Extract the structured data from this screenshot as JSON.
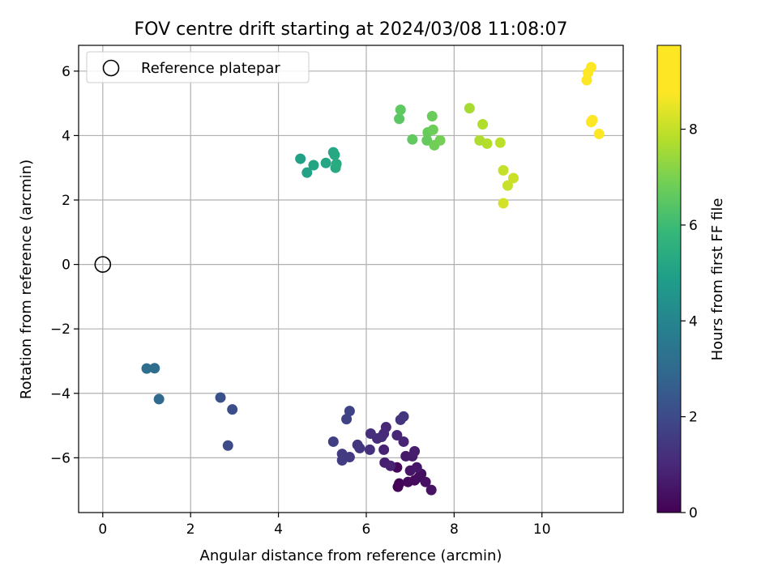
{
  "chart_data": {
    "type": "scatter",
    "title": "FOV centre drift starting at 2024/03/08 11:08:07",
    "xlabel": "Angular distance from reference (arcmin)",
    "ylabel": "Rotation from reference (arcmin)",
    "xlim": [
      -0.55,
      11.85
    ],
    "ylim": [
      -7.7,
      6.8
    ],
    "x_ticks": [
      0,
      2,
      4,
      6,
      8,
      10
    ],
    "y_ticks": [
      -6,
      -4,
      -2,
      0,
      2,
      4,
      6
    ],
    "x_tick_labels": [
      "0",
      "2",
      "4",
      "6",
      "8",
      "10"
    ],
    "y_tick_labels": [
      "−6",
      "−4",
      "−2",
      "0",
      "2",
      "4",
      "6"
    ],
    "grid": true,
    "legend": {
      "position": "top-left",
      "entries": [
        {
          "label": "Reference platepar",
          "marker": "open-circle"
        }
      ]
    },
    "reference_point": {
      "x": 0,
      "y": 0
    },
    "colorbar": {
      "label": "Hours from first FF file",
      "colormap": "viridis",
      "range": [
        0,
        9.75
      ],
      "ticks": [
        0,
        2,
        4,
        6,
        8
      ],
      "tick_labels": [
        "0",
        "2",
        "4",
        "6",
        "8"
      ]
    },
    "points": [
      {
        "x": 6.72,
        "y": -6.9,
        "c": 0.05
      },
      {
        "x": 6.75,
        "y": -6.8,
        "c": 0.1
      },
      {
        "x": 6.7,
        "y": -6.3,
        "c": 0.15
      },
      {
        "x": 6.95,
        "y": -6.75,
        "c": 0.2
      },
      {
        "x": 7.1,
        "y": -6.7,
        "c": 0.25
      },
      {
        "x": 7.2,
        "y": -6.6,
        "c": 0.3
      },
      {
        "x": 7.25,
        "y": -6.5,
        "c": 0.35
      },
      {
        "x": 7.35,
        "y": -6.75,
        "c": 0.4
      },
      {
        "x": 7.48,
        "y": -7.0,
        "c": 0.45
      },
      {
        "x": 7.0,
        "y": -6.4,
        "c": 0.5
      },
      {
        "x": 7.15,
        "y": -6.3,
        "c": 0.55
      },
      {
        "x": 6.9,
        "y": -5.95,
        "c": 0.6
      },
      {
        "x": 7.05,
        "y": -5.95,
        "c": 0.65
      },
      {
        "x": 7.1,
        "y": -5.8,
        "c": 0.7
      },
      {
        "x": 6.42,
        "y": -6.15,
        "c": 0.75
      },
      {
        "x": 6.55,
        "y": -6.25,
        "c": 0.8
      },
      {
        "x": 6.4,
        "y": -5.75,
        "c": 0.85
      },
      {
        "x": 6.85,
        "y": -5.5,
        "c": 0.9
      },
      {
        "x": 6.7,
        "y": -5.3,
        "c": 0.95
      },
      {
        "x": 6.45,
        "y": -5.05,
        "c": 1.0
      },
      {
        "x": 6.4,
        "y": -5.25,
        "c": 1.05
      },
      {
        "x": 6.35,
        "y": -5.35,
        "c": 1.1
      },
      {
        "x": 6.25,
        "y": -5.4,
        "c": 1.15
      },
      {
        "x": 6.1,
        "y": -5.25,
        "c": 1.2
      },
      {
        "x": 6.08,
        "y": -5.75,
        "c": 1.25
      },
      {
        "x": 6.78,
        "y": -4.82,
        "c": 1.3
      },
      {
        "x": 6.85,
        "y": -4.72,
        "c": 1.35
      },
      {
        "x": 5.85,
        "y": -5.7,
        "c": 1.4
      },
      {
        "x": 5.8,
        "y": -5.6,
        "c": 1.45
      },
      {
        "x": 5.62,
        "y": -5.98,
        "c": 1.5
      },
      {
        "x": 5.45,
        "y": -5.88,
        "c": 1.55
      },
      {
        "x": 5.45,
        "y": -6.08,
        "c": 1.6
      },
      {
        "x": 5.25,
        "y": -5.5,
        "c": 1.65
      },
      {
        "x": 5.55,
        "y": -4.8,
        "c": 1.7
      },
      {
        "x": 5.62,
        "y": -4.55,
        "c": 1.75
      },
      {
        "x": 2.85,
        "y": -5.62,
        "c": 2.0
      },
      {
        "x": 2.95,
        "y": -4.5,
        "c": 2.1
      },
      {
        "x": 2.68,
        "y": -4.13,
        "c": 2.2
      },
      {
        "x": 1.28,
        "y": -4.18,
        "c": 3.0
      },
      {
        "x": 1.18,
        "y": -3.22,
        "c": 3.1
      },
      {
        "x": 1.0,
        "y": -3.23,
        "c": 3.2
      },
      {
        "x": 4.5,
        "y": 3.28,
        "c": 5.0
      },
      {
        "x": 4.65,
        "y": 2.85,
        "c": 5.05
      },
      {
        "x": 4.8,
        "y": 3.08,
        "c": 5.1
      },
      {
        "x": 5.08,
        "y": 3.15,
        "c": 5.15
      },
      {
        "x": 5.25,
        "y": 3.48,
        "c": 5.2
      },
      {
        "x": 5.28,
        "y": 3.4,
        "c": 5.25
      },
      {
        "x": 5.3,
        "y": 3.0,
        "c": 5.3
      },
      {
        "x": 5.32,
        "y": 3.12,
        "c": 5.35
      },
      {
        "x": 6.75,
        "y": 4.52,
        "c": 6.5
      },
      {
        "x": 6.78,
        "y": 4.8,
        "c": 6.55
      },
      {
        "x": 7.05,
        "y": 3.88,
        "c": 6.6
      },
      {
        "x": 7.38,
        "y": 3.85,
        "c": 6.65
      },
      {
        "x": 7.4,
        "y": 4.1,
        "c": 6.7
      },
      {
        "x": 7.5,
        "y": 4.6,
        "c": 6.75
      },
      {
        "x": 7.52,
        "y": 4.18,
        "c": 6.8
      },
      {
        "x": 7.55,
        "y": 3.7,
        "c": 6.85
      },
      {
        "x": 7.68,
        "y": 3.85,
        "c": 6.9
      },
      {
        "x": 8.35,
        "y": 4.85,
        "c": 7.6
      },
      {
        "x": 8.58,
        "y": 3.85,
        "c": 7.7
      },
      {
        "x": 8.65,
        "y": 4.35,
        "c": 7.75
      },
      {
        "x": 8.75,
        "y": 3.75,
        "c": 7.8
      },
      {
        "x": 9.05,
        "y": 3.78,
        "c": 7.9
      },
      {
        "x": 9.12,
        "y": 2.92,
        "c": 8.0
      },
      {
        "x": 9.22,
        "y": 2.45,
        "c": 8.05
      },
      {
        "x": 9.35,
        "y": 2.68,
        "c": 8.1
      },
      {
        "x": 9.12,
        "y": 1.9,
        "c": 8.2
      },
      {
        "x": 11.02,
        "y": 5.72,
        "c": 9.5
      },
      {
        "x": 11.05,
        "y": 5.95,
        "c": 9.55
      },
      {
        "x": 11.12,
        "y": 6.12,
        "c": 9.6
      },
      {
        "x": 11.12,
        "y": 4.42,
        "c": 9.65
      },
      {
        "x": 11.15,
        "y": 4.48,
        "c": 9.7
      },
      {
        "x": 11.3,
        "y": 4.05,
        "c": 9.75
      }
    ]
  }
}
